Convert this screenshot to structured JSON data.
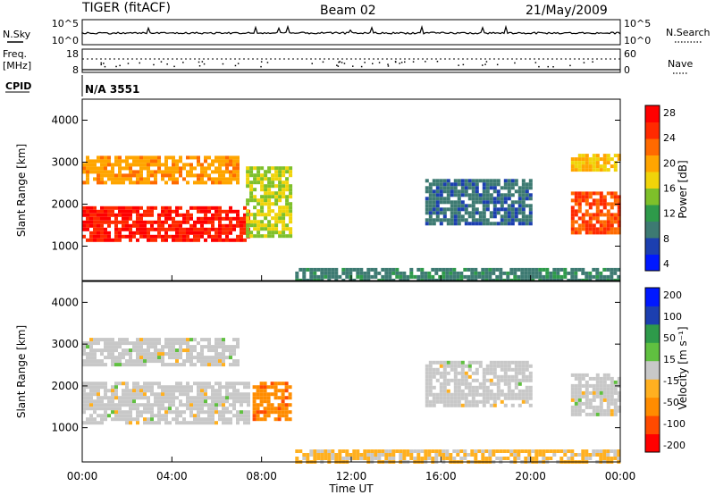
{
  "header": {
    "title": "TIGER (fitACF)",
    "beam": "Beam 02",
    "date": "21/May/2009"
  },
  "strip_panels": {
    "nsky_label": "N.Sky",
    "nsky_ticks": [
      "10^5",
      "10^0"
    ],
    "nsearch_label": "N.Search",
    "nsearch_ticks": [
      "10^5",
      "10^0"
    ],
    "freq_label_line1": "Freq.",
    "freq_label_line2": "[MHz]",
    "freq_ticks": [
      "18",
      "8"
    ],
    "nave_label": "Nave",
    "nave_ticks": [
      "60",
      "0"
    ],
    "cpid_label": "CPID",
    "cpid_value": "N/A 3551"
  },
  "chart_data": [
    {
      "type": "heatmap",
      "title": "",
      "xlabel": "Time UT",
      "ylabel": "Slant Range [km]",
      "x_ticks": [
        "00:00",
        "04:00",
        "08:00",
        "12:00",
        "16:00",
        "20:00",
        "00:00"
      ],
      "xlim": [
        0,
        24
      ],
      "ylim": [
        180,
        4500
      ],
      "y_ticks": [
        1000,
        2000,
        3000,
        4000
      ],
      "colorbar": {
        "label": "Power [dB]",
        "ticks": [
          "28",
          "24",
          "20",
          "16",
          "12",
          "8",
          "4"
        ],
        "range": [
          0,
          30
        ],
        "colors": [
          "#0018ff",
          "#1c3fb0",
          "#3d7a72",
          "#2e9a4a",
          "#7ec02a",
          "#f0d40a",
          "#ffa500",
          "#ff6a00",
          "#ff2a00",
          "#ff0000"
        ]
      },
      "echo_regions": [
        {
          "t": [
            0.0,
            7.4
          ],
          "r": [
            1150,
            1950
          ],
          "value": 27
        },
        {
          "t": [
            0.0,
            7.0
          ],
          "r": [
            2500,
            3150
          ],
          "value": 20
        },
        {
          "t": [
            7.3,
            9.3
          ],
          "r": [
            1200,
            2900
          ],
          "value": 15
        },
        {
          "t": [
            9.5,
            24.0
          ],
          "r": [
            200,
            480
          ],
          "value": 8
        },
        {
          "t": [
            15.3,
            20.0
          ],
          "r": [
            1500,
            2600
          ],
          "value": 7
        },
        {
          "t": [
            21.8,
            24.0
          ],
          "r": [
            1300,
            2300
          ],
          "value": 24
        },
        {
          "t": [
            21.8,
            24.0
          ],
          "r": [
            2800,
            3200
          ],
          "value": 18
        }
      ]
    },
    {
      "type": "heatmap",
      "title": "",
      "xlabel": "Time UT",
      "ylabel": "Slant Range [km]",
      "x_ticks": [
        "00:00",
        "04:00",
        "08:00",
        "12:00",
        "16:00",
        "20:00",
        "00:00"
      ],
      "xlim": [
        0,
        24
      ],
      "ylim": [
        180,
        4500
      ],
      "y_ticks": [
        1000,
        2000,
        3000,
        4000
      ],
      "colorbar": {
        "label": "Velocity [m s⁻¹]",
        "ticks": [
          "200",
          "100",
          "50",
          "15",
          "-15",
          "-50",
          "-100",
          "-200"
        ],
        "range": [
          -250,
          250
        ],
        "colors": [
          "#ff0000",
          "#ff4a00",
          "#ff8c00",
          "#ffb020",
          "#c8c8c8",
          "#60c040",
          "#2e9a4a",
          "#1c3fb0",
          "#0018ff"
        ]
      },
      "echo_regions": [
        {
          "t": [
            0.0,
            7.4
          ],
          "r": [
            1150,
            2100
          ],
          "value": 0
        },
        {
          "t": [
            0.0,
            7.0
          ],
          "r": [
            2500,
            3150
          ],
          "value": 0
        },
        {
          "t": [
            7.6,
            9.3
          ],
          "r": [
            1200,
            2100
          ],
          "value": -120
        },
        {
          "t": [
            9.5,
            24.0
          ],
          "r": [
            200,
            480
          ],
          "value": -40
        },
        {
          "t": [
            15.3,
            20.0
          ],
          "r": [
            1500,
            2600
          ],
          "value": 0
        },
        {
          "t": [
            21.8,
            24.0
          ],
          "r": [
            1300,
            2300
          ],
          "value": 0
        }
      ]
    }
  ]
}
